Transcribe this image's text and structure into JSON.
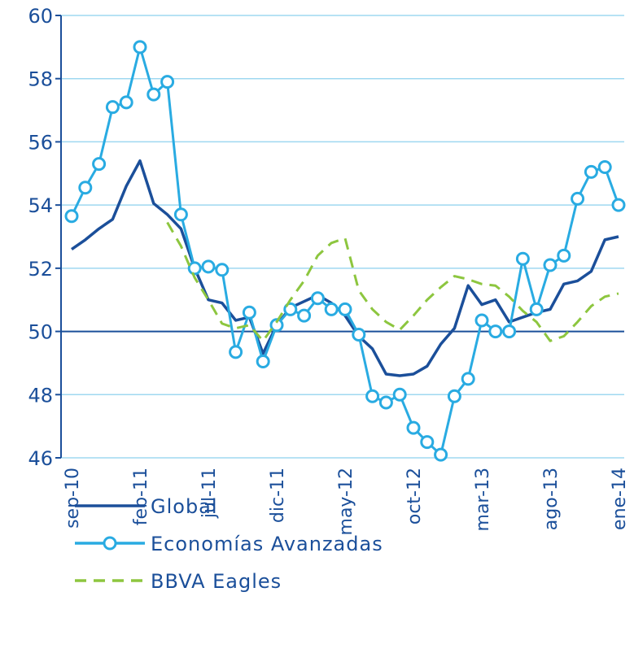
{
  "chart_data": {
    "type": "line",
    "categories": [
      "sep-10",
      null,
      null,
      null,
      null,
      "feb-11",
      null,
      null,
      null,
      null,
      "jul-11",
      null,
      null,
      null,
      null,
      "dic-11",
      null,
      null,
      null,
      null,
      "may-12",
      null,
      null,
      null,
      null,
      "oct-12",
      null,
      null,
      null,
      null,
      "mar-13",
      null,
      null,
      null,
      null,
      "ago-13",
      null,
      null,
      null,
      null,
      "ene-14"
    ],
    "series": [
      {
        "name": "Global",
        "color": "#1b4f9a",
        "style": "solid",
        "values": [
          52.6,
          52.9,
          53.25,
          53.55,
          54.6,
          55.4,
          54.05,
          53.7,
          53.25,
          52.0,
          51.0,
          50.9,
          50.35,
          50.45,
          49.3,
          50.2,
          50.75,
          50.95,
          51.15,
          50.9,
          50.5,
          49.85,
          49.45,
          48.65,
          48.6,
          48.65,
          48.9,
          49.6,
          50.1,
          51.45,
          50.85,
          51.0,
          50.3,
          50.45,
          50.6,
          50.7,
          51.5,
          51.6,
          51.9,
          52.9,
          53.0
        ]
      },
      {
        "name": "Economías Avanzadas",
        "color": "#29abe2",
        "style": "marker",
        "values": [
          53.65,
          54.55,
          55.3,
          57.1,
          57.25,
          59.0,
          57.5,
          57.9,
          53.7,
          52.0,
          52.05,
          51.95,
          49.35,
          50.6,
          49.05,
          50.2,
          50.7,
          50.5,
          51.05,
          50.7,
          50.7,
          49.9,
          47.95,
          47.75,
          48.0,
          46.95,
          46.5,
          46.1,
          47.95,
          48.5,
          50.35,
          50.0,
          50.0,
          52.3,
          50.7,
          52.1,
          52.4,
          54.2,
          55.05,
          55.2,
          54.0
        ]
      },
      {
        "name": "BBVA Eagles",
        "color": "#8dc63f",
        "style": "dashed",
        "values": [
          null,
          null,
          null,
          null,
          null,
          null,
          null,
          53.45,
          52.7,
          51.7,
          51.0,
          50.25,
          50.1,
          50.2,
          49.7,
          50.3,
          51.0,
          51.6,
          52.4,
          52.8,
          52.95,
          51.3,
          50.7,
          50.3,
          50.05,
          50.5,
          51.0,
          51.4,
          51.75,
          51.65,
          51.5,
          51.45,
          51.1,
          50.65,
          50.3,
          49.7,
          49.85,
          50.3,
          50.8,
          51.1,
          51.2
        ]
      }
    ],
    "ylim": [
      46,
      60
    ],
    "yticks": [
      46,
      48,
      50,
      52,
      54,
      56,
      58,
      60
    ],
    "grid": true,
    "xaxis_crosses": 50
  }
}
